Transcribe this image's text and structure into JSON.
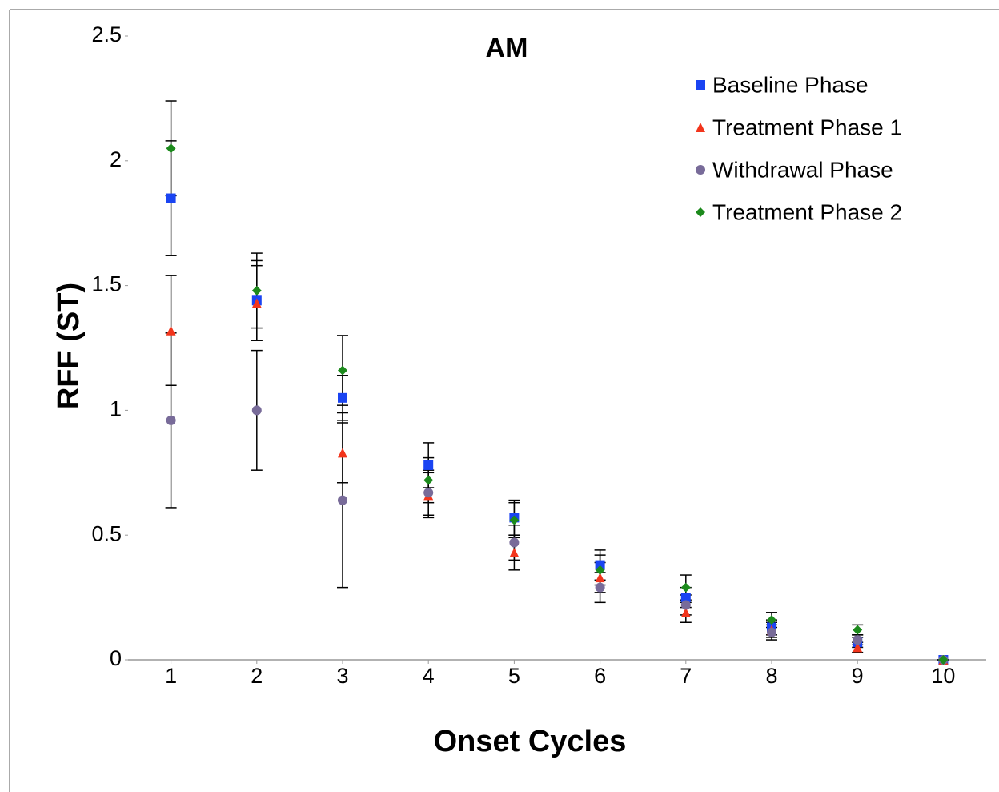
{
  "chart_data": {
    "type": "scatter",
    "title": "AM",
    "x_label": "Onset Cycles",
    "y_label": "RFF (ST)",
    "x": [
      1,
      2,
      3,
      4,
      5,
      6,
      7,
      8,
      9,
      10
    ],
    "xlim": [
      0.5,
      10.5
    ],
    "xticks": [
      1,
      2,
      3,
      4,
      5,
      6,
      7,
      8,
      9,
      10
    ],
    "ylim": [
      0,
      2.5
    ],
    "yticks": [
      0,
      0.5,
      1,
      1.5,
      2,
      2.5
    ],
    "grid": false,
    "legend_position": "upper right",
    "series": [
      {
        "name": "Baseline Phase",
        "color": "#1a44f2",
        "marker": "square",
        "values": [
          1.85,
          1.44,
          1.05,
          0.78,
          0.57,
          0.38,
          0.25,
          0.13,
          0.07,
          0
        ],
        "errors": [
          0.23,
          0.16,
          0.09,
          0.09,
          0.07,
          0.06,
          0.04,
          0.03,
          0.02,
          0
        ]
      },
      {
        "name": "Treatment Phase 1",
        "color": "#f2351c",
        "marker": "triangle",
        "values": [
          1.32,
          1.43,
          0.83,
          0.66,
          0.43,
          0.33,
          0.19,
          0.12,
          0.05,
          0
        ],
        "errors": [
          0.22,
          0.15,
          0.12,
          0.09,
          0.07,
          0.06,
          0.04,
          0.03,
          0.02,
          0
        ]
      },
      {
        "name": "Withdrawal Phase",
        "color": "#786b99",
        "marker": "circle",
        "values": [
          0.96,
          1.0,
          0.64,
          0.67,
          0.47,
          0.29,
          0.22,
          0.11,
          0.08,
          0
        ],
        "errors": [
          0.35,
          0.24,
          0.35,
          0.09,
          0.07,
          0.06,
          0.04,
          0.03,
          0.02,
          0
        ]
      },
      {
        "name": "Treatment Phase 2",
        "color": "#1c8a1c",
        "marker": "diamond",
        "values": [
          2.05,
          1.48,
          1.16,
          0.72,
          0.56,
          0.36,
          0.29,
          0.16,
          0.12,
          0
        ],
        "errors": [
          0.19,
          0.15,
          0.14,
          0.09,
          0.07,
          0.06,
          0.05,
          0.03,
          0.02,
          0
        ]
      }
    ]
  }
}
